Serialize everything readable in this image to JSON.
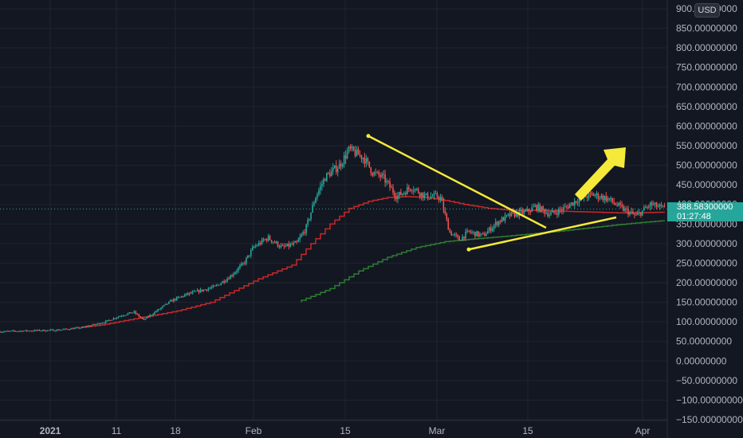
{
  "currency": "USD",
  "last_price": "388.58300000",
  "countdown": "01:27:48",
  "colors": {
    "background": "#131722",
    "grid": "#1f2430",
    "axis_text": "#b2b5be",
    "bull": "#26a69a",
    "bear": "#ef5350",
    "ma_red": "#c62828",
    "ma_green": "#2e7d32",
    "annotation": "#f5e93a",
    "price_line": "#26a69a"
  },
  "chart_data": {
    "type": "candlestick",
    "y_axis": {
      "ticks": [
        "900.00000000",
        "850.00000000",
        "800.00000000",
        "750.00000000",
        "700.00000000",
        "650.00000000",
        "600.00000000",
        "550.00000000",
        "500.00000000",
        "450.00000000",
        "400.00000000",
        "350.00000000",
        "300.00000000",
        "250.00000000",
        "200.00000000",
        "150.00000000",
        "100.00000000",
        "50.00000000",
        "0.00000000",
        "−50.00000000",
        "−100.00000000",
        "−150.00000000"
      ],
      "range": [
        -150,
        900
      ]
    },
    "x_axis": {
      "ticks": [
        "2021",
        "11",
        "18",
        "Feb",
        "15",
        "Mar",
        "15",
        "Apr"
      ]
    },
    "price_path": [
      [
        0,
        75
      ],
      [
        5,
        77
      ],
      [
        12,
        79
      ],
      [
        17,
        85
      ],
      [
        22,
        100
      ],
      [
        25,
        115
      ],
      [
        28,
        125
      ],
      [
        30,
        105
      ],
      [
        33,
        130
      ],
      [
        36,
        155
      ],
      [
        39,
        170
      ],
      [
        42,
        180
      ],
      [
        45,
        190
      ],
      [
        48,
        215
      ],
      [
        51,
        250
      ],
      [
        53,
        290
      ],
      [
        56,
        315
      ],
      [
        59,
        290
      ],
      [
        62,
        300
      ],
      [
        64,
        340
      ],
      [
        66,
        420
      ],
      [
        68,
        470
      ],
      [
        71,
        500
      ],
      [
        73,
        540
      ],
      [
        76,
        520
      ],
      [
        78,
        480
      ],
      [
        80,
        470
      ],
      [
        83,
        420
      ],
      [
        86,
        445
      ],
      [
        89,
        420
      ],
      [
        92,
        420
      ],
      [
        94,
        330
      ],
      [
        96,
        310
      ],
      [
        98,
        330
      ],
      [
        101,
        320
      ],
      [
        104,
        355
      ],
      [
        107,
        375
      ],
      [
        110,
        380
      ],
      [
        112,
        395
      ],
      [
        115,
        375
      ],
      [
        118,
        390
      ],
      [
        121,
        415
      ],
      [
        124,
        425
      ],
      [
        127,
        415
      ],
      [
        130,
        390
      ],
      [
        133,
        370
      ],
      [
        136,
        400
      ],
      [
        139,
        388.5
      ]
    ],
    "ma_red": [
      [
        17,
        85
      ],
      [
        22,
        92
      ],
      [
        30,
        110
      ],
      [
        38,
        128
      ],
      [
        45,
        150
      ],
      [
        50,
        180
      ],
      [
        55,
        210
      ],
      [
        62,
        245
      ],
      [
        66,
        300
      ],
      [
        70,
        350
      ],
      [
        74,
        390
      ],
      [
        78,
        408
      ],
      [
        82,
        418
      ],
      [
        86,
        420
      ],
      [
        90,
        418
      ],
      [
        94,
        410
      ],
      [
        98,
        400
      ],
      [
        103,
        390
      ],
      [
        108,
        385
      ],
      [
        114,
        385
      ],
      [
        120,
        382
      ],
      [
        126,
        380
      ],
      [
        132,
        378
      ],
      [
        139,
        380
      ]
    ],
    "ma_green": [
      [
        63,
        150
      ],
      [
        70,
        185
      ],
      [
        76,
        230
      ],
      [
        82,
        265
      ],
      [
        88,
        290
      ],
      [
        94,
        305
      ],
      [
        100,
        312
      ],
      [
        106,
        318
      ],
      [
        112,
        325
      ],
      [
        118,
        332
      ],
      [
        124,
        340
      ],
      [
        130,
        348
      ],
      [
        136,
        355
      ],
      [
        139,
        358
      ]
    ],
    "annotations": {
      "upper_trendline": [
        [
          77,
          575
        ],
        [
          134,
          337
        ]
      ],
      "lower_trendline": [
        [
          98,
          285
        ],
        [
          151,
          362
        ]
      ],
      "arrow": {
        "from": [
          141,
          410
        ],
        "to": [
          155,
          530
        ]
      }
    }
  }
}
